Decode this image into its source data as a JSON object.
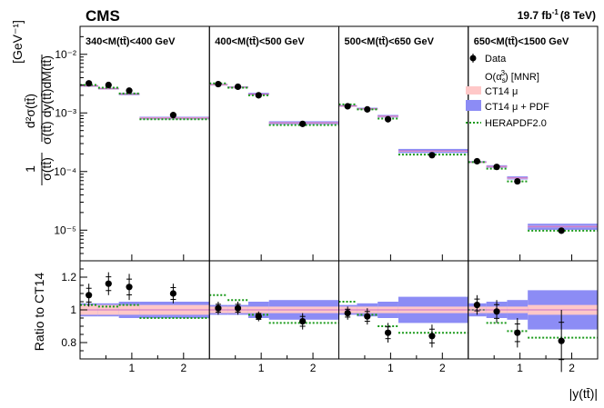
{
  "header": {
    "experiment": "CMS",
    "lumi": "19.7 fb",
    "lumi_exp": "-1",
    "energy": "(8 TeV)"
  },
  "legend": {
    "data": "Data",
    "theory_pre": "O(α",
    "theory_sub": "s",
    "theory_sup": "3",
    "theory_post": ") [MNR]",
    "ct14": "CT14 μ",
    "ct14pdf": "CT14 μ + PDF",
    "hera": "HERAPDF2.0"
  },
  "axes": {
    "ylabel_top_pre": "σ(tt̄) dy(tt̄)dM(tt̄)",
    "ylabel_top_num": "d²σ(tt̄)",
    "ylabel_top_one": "1",
    "ylabel_top_unit": "[GeV⁻¹]",
    "ylabel_bottom": "Ratio to CT14",
    "xlabel": "|y(tt̄)|"
  },
  "colors": {
    "ct14": "#ffc8c8",
    "ct14pdf": "#8c8cf5",
    "hera": "#1a9a1a",
    "data": "#000000"
  },
  "chart_data": {
    "type": "scatter",
    "title": "",
    "xlabel": "|y(tt̄)|",
    "ylabel": "1/σ(tt̄) d²σ(tt̄)/dy(tt̄)dM(tt̄) [GeV⁻¹]",
    "ratio_ylabel": "Ratio to CT14",
    "top_yscale": "log",
    "top_ylim": [
      3e-06,
      0.03
    ],
    "top_yticks": [
      "10⁻⁵",
      "10⁻⁴",
      "10⁻³",
      "10⁻²"
    ],
    "ratio_ylim": [
      0.7,
      1.3
    ],
    "ratio_yticks": [
      "0.8",
      "1",
      "1.2"
    ],
    "xlim": [
      0,
      2.5
    ],
    "xticks": [
      1,
      2
    ],
    "panels": [
      {
        "label": "340<M(tt̄)<400 GeV",
        "bins": [
          [
            0,
            0.35
          ],
          [
            0.35,
            0.75
          ],
          [
            0.75,
            1.15
          ],
          [
            1.15,
            2.5
          ]
        ],
        "data_x": [
          0.17,
          0.55,
          0.95,
          1.8
        ],
        "data": [
          0.0032,
          0.003,
          0.0024,
          0.00092
        ],
        "ct14": [
          0.0029,
          0.0026,
          0.0021,
          0.00082
        ],
        "ct14_unc_frac": [
          0.03,
          0.03,
          0.03,
          0.03
        ],
        "ct14pdf_unc_frac": [
          0.04,
          0.04,
          0.05,
          0.05
        ],
        "hera": [
          0.003,
          0.0027,
          0.00215,
          0.00078
        ],
        "ratio": [
          1.09,
          1.16,
          1.14,
          1.1
        ],
        "ratio_err": [
          0.07,
          0.07,
          0.08,
          0.06
        ],
        "hera_ratio": [
          1.03,
          1.02,
          1.03,
          0.95
        ]
      },
      {
        "label": "400<M(tt̄)<500 GeV",
        "bins": [
          [
            0,
            0.35
          ],
          [
            0.35,
            0.75
          ],
          [
            0.75,
            1.15
          ],
          [
            1.15,
            2.5
          ]
        ],
        "data_x": [
          0.17,
          0.55,
          0.95,
          1.8
        ],
        "data": [
          0.0031,
          0.0028,
          0.002,
          0.00065
        ],
        "ct14": [
          0.00305,
          0.00275,
          0.0021,
          0.00068
        ],
        "ct14_unc_frac": [
          0.02,
          0.02,
          0.02,
          0.02
        ],
        "ct14pdf_unc_frac": [
          0.03,
          0.03,
          0.05,
          0.06
        ],
        "hera": [
          0.0032,
          0.0027,
          0.002,
          0.00062
        ],
        "ratio": [
          1.01,
          1.01,
          0.96,
          0.93
        ],
        "ratio_err": [
          0.04,
          0.04,
          0.03,
          0.05
        ],
        "hera_ratio": [
          1.09,
          1.06,
          0.97,
          0.92
        ]
      },
      {
        "label": "500<M(tt̄)<650 GeV",
        "bins": [
          [
            0,
            0.35
          ],
          [
            0.35,
            0.75
          ],
          [
            0.75,
            1.15
          ],
          [
            1.15,
            2.5
          ]
        ],
        "data_x": [
          0.17,
          0.55,
          0.95,
          1.8
        ],
        "data": [
          0.0013,
          0.00115,
          0.00078,
          0.00019
        ],
        "ct14": [
          0.00132,
          0.00118,
          0.00088,
          0.000225
        ],
        "ct14_unc_frac": [
          0.02,
          0.02,
          0.02,
          0.02
        ],
        "ct14pdf_unc_frac": [
          0.03,
          0.04,
          0.05,
          0.08
        ],
        "hera": [
          0.0014,
          0.00115,
          0.0008,
          0.000195
        ],
        "ratio": [
          0.98,
          0.96,
          0.86,
          0.84
        ],
        "ratio_err": [
          0.04,
          0.05,
          0.06,
          0.07
        ],
        "hera_ratio": [
          1.05,
          0.97,
          0.9,
          0.86
        ]
      },
      {
        "label": "650<M(tt̄)<1500 GeV",
        "bins": [
          [
            0,
            0.35
          ],
          [
            0.35,
            0.75
          ],
          [
            0.75,
            1.15
          ],
          [
            1.15,
            2.5
          ]
        ],
        "data_x": [
          0.17,
          0.55,
          0.95,
          1.8
        ],
        "data": [
          0.00015,
          0.00012,
          6.8e-05,
          9.8e-06
        ],
        "ct14": [
          0.000145,
          0.000122,
          7.8e-05,
          1.15e-05
        ],
        "ct14_unc_frac": [
          0.02,
          0.02,
          0.02,
          0.03
        ],
        "ct14pdf_unc_frac": [
          0.04,
          0.05,
          0.06,
          0.12
        ],
        "hera": [
          0.000145,
          0.000112,
          6.8e-05,
          9.8e-06
        ],
        "ratio": [
          1.03,
          0.99,
          0.86,
          0.81
        ],
        "ratio_err": [
          0.06,
          0.07,
          0.09,
          0.19
        ],
        "hera_ratio": [
          1.0,
          0.92,
          0.87,
          0.83
        ]
      }
    ]
  }
}
